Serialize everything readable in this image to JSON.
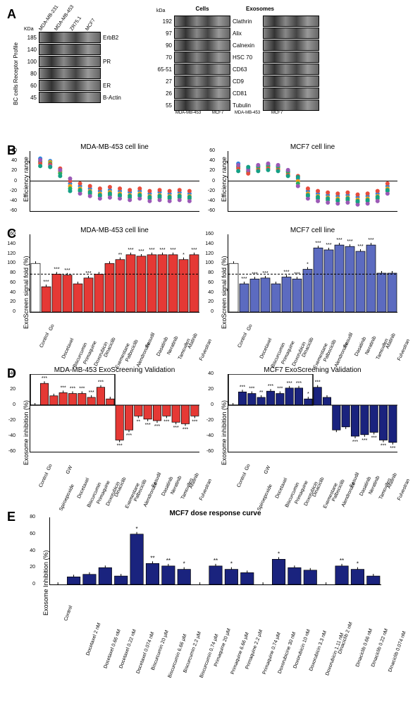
{
  "panelA": {
    "left": {
      "header": "BC cells Receptor Profile",
      "lanes": [
        "MDA-MB-231",
        "MDA-MB-453",
        "ZR75.1",
        "MCF7"
      ],
      "kda_label": "KDa",
      "bands": [
        {
          "kda": "185",
          "label": "ErbB2"
        },
        {
          "kda": "140",
          "label": ""
        },
        {
          "kda": "100",
          "label": "PR"
        },
        {
          "kda": "80",
          "label": ""
        },
        {
          "kda": "60",
          "label": "ER"
        },
        {
          "kda": "45",
          "label": "B-Actin"
        }
      ]
    },
    "right": {
      "kda_label": "kDa",
      "groups": [
        "Cells",
        "Exosomes"
      ],
      "lanes": [
        "MDA-MB-453",
        "MCF7",
        "MDA-MB-453",
        "MCF7"
      ],
      "bands": [
        {
          "kda": "192",
          "label": "Clathrin"
        },
        {
          "kda": "97",
          "label": "Alix"
        },
        {
          "kda": "90",
          "label": "Calnexin"
        },
        {
          "kda": "70",
          "label": "HSC 70"
        },
        {
          "kda": "65-51",
          "label": "CD63"
        },
        {
          "kda": "27",
          "label": "CD9"
        },
        {
          "kda": "26",
          "label": "CD81"
        },
        {
          "kda": "55",
          "label": "Tubulin"
        }
      ]
    }
  },
  "panelB": {
    "ylabel": "Efficiency range",
    "yticks": [
      -60,
      -40,
      -20,
      0,
      20,
      40,
      60
    ],
    "colors": [
      "#2e86de",
      "#f39c12",
      "#27ae60",
      "#e74c3c",
      "#9b59b6",
      "#16a085"
    ],
    "charts": [
      {
        "title": "MDA-MB-453 cell line",
        "points": [
          [
            1,
            45
          ],
          [
            1,
            40
          ],
          [
            1,
            38
          ],
          [
            1,
            35
          ],
          [
            1,
            42
          ],
          [
            1,
            30
          ],
          [
            2,
            40
          ],
          [
            2,
            38
          ],
          [
            2,
            35
          ],
          [
            2,
            33
          ],
          [
            2,
            30
          ],
          [
            2,
            28
          ],
          [
            3,
            20
          ],
          [
            3,
            18
          ],
          [
            3,
            15
          ],
          [
            3,
            25
          ],
          [
            3,
            22
          ],
          [
            3,
            10
          ],
          [
            4,
            -5
          ],
          [
            4,
            -10
          ],
          [
            4,
            -15
          ],
          [
            4,
            0
          ],
          [
            4,
            5
          ],
          [
            4,
            -20
          ],
          [
            5,
            -10
          ],
          [
            5,
            -15
          ],
          [
            5,
            -20
          ],
          [
            5,
            -5
          ],
          [
            5,
            -25
          ],
          [
            5,
            -18
          ],
          [
            6,
            -15
          ],
          [
            6,
            -20
          ],
          [
            6,
            -25
          ],
          [
            6,
            -10
          ],
          [
            6,
            -30
          ],
          [
            6,
            -22
          ],
          [
            7,
            -20
          ],
          [
            7,
            -25
          ],
          [
            7,
            -30
          ],
          [
            7,
            -15
          ],
          [
            7,
            -35
          ],
          [
            7,
            -28
          ],
          [
            8,
            -18
          ],
          [
            8,
            -22
          ],
          [
            8,
            -28
          ],
          [
            8,
            -12
          ],
          [
            8,
            -33
          ],
          [
            8,
            -25
          ],
          [
            9,
            -20
          ],
          [
            9,
            -25
          ],
          [
            9,
            -30
          ],
          [
            9,
            -15
          ],
          [
            9,
            -35
          ],
          [
            9,
            -28
          ],
          [
            10,
            -22
          ],
          [
            10,
            -28
          ],
          [
            10,
            -33
          ],
          [
            10,
            -18
          ],
          [
            10,
            -38
          ],
          [
            10,
            -30
          ],
          [
            11,
            -20
          ],
          [
            11,
            -25
          ],
          [
            11,
            -30
          ],
          [
            11,
            -15
          ],
          [
            11,
            -35
          ],
          [
            11,
            -28
          ],
          [
            12,
            -25
          ],
          [
            12,
            -30
          ],
          [
            12,
            -35
          ],
          [
            12,
            -20
          ],
          [
            12,
            -40
          ],
          [
            12,
            -32
          ],
          [
            13,
            -22
          ],
          [
            13,
            -28
          ],
          [
            13,
            -33
          ],
          [
            13,
            -18
          ],
          [
            13,
            -38
          ],
          [
            13,
            -30
          ],
          [
            14,
            -25
          ],
          [
            14,
            -30
          ],
          [
            14,
            -35
          ],
          [
            14,
            -20
          ],
          [
            14,
            -40
          ],
          [
            14,
            -32
          ],
          [
            15,
            -23
          ],
          [
            15,
            -28
          ],
          [
            15,
            -33
          ],
          [
            15,
            -18
          ],
          [
            15,
            -38
          ],
          [
            15,
            -30
          ],
          [
            16,
            -25
          ],
          [
            16,
            -30
          ],
          [
            16,
            -35
          ],
          [
            16,
            -20
          ],
          [
            16,
            -40
          ],
          [
            16,
            -32
          ]
        ]
      },
      {
        "title": "MCF7 cell line",
        "points": [
          [
            1,
            35
          ],
          [
            1,
            30
          ],
          [
            1,
            28
          ],
          [
            1,
            25
          ],
          [
            1,
            32
          ],
          [
            1,
            20
          ],
          [
            2,
            25
          ],
          [
            2,
            20
          ],
          [
            2,
            18
          ],
          [
            2,
            15
          ],
          [
            2,
            22
          ],
          [
            2,
            28
          ],
          [
            3,
            30
          ],
          [
            3,
            25
          ],
          [
            3,
            28
          ],
          [
            3,
            22
          ],
          [
            3,
            32
          ],
          [
            3,
            20
          ],
          [
            4,
            32
          ],
          [
            4,
            28
          ],
          [
            4,
            30
          ],
          [
            4,
            25
          ],
          [
            4,
            35
          ],
          [
            4,
            22
          ],
          [
            5,
            30
          ],
          [
            5,
            25
          ],
          [
            5,
            28
          ],
          [
            5,
            22
          ],
          [
            5,
            32
          ],
          [
            5,
            20
          ],
          [
            6,
            20
          ],
          [
            6,
            15
          ],
          [
            6,
            18
          ],
          [
            6,
            12
          ],
          [
            6,
            22
          ],
          [
            6,
            10
          ],
          [
            7,
            5
          ],
          [
            7,
            0
          ],
          [
            7,
            -5
          ],
          [
            7,
            10
          ],
          [
            7,
            -10
          ],
          [
            7,
            8
          ],
          [
            8,
            -20
          ],
          [
            8,
            -25
          ],
          [
            8,
            -30
          ],
          [
            8,
            -15
          ],
          [
            8,
            -35
          ],
          [
            8,
            -28
          ],
          [
            9,
            -25
          ],
          [
            9,
            -30
          ],
          [
            9,
            -35
          ],
          [
            9,
            -20
          ],
          [
            9,
            -40
          ],
          [
            9,
            -32
          ],
          [
            10,
            -28
          ],
          [
            10,
            -33
          ],
          [
            10,
            -38
          ],
          [
            10,
            -23
          ],
          [
            10,
            -43
          ],
          [
            10,
            -35
          ],
          [
            11,
            -30
          ],
          [
            11,
            -35
          ],
          [
            11,
            -40
          ],
          [
            11,
            -25
          ],
          [
            11,
            -45
          ],
          [
            11,
            -38
          ],
          [
            12,
            -28
          ],
          [
            12,
            -33
          ],
          [
            12,
            -38
          ],
          [
            12,
            -23
          ],
          [
            12,
            -43
          ],
          [
            12,
            -35
          ],
          [
            13,
            -32
          ],
          [
            13,
            -37
          ],
          [
            13,
            -42
          ],
          [
            13,
            -27
          ],
          [
            13,
            -47
          ],
          [
            13,
            -40
          ],
          [
            14,
            -30
          ],
          [
            14,
            -35
          ],
          [
            14,
            -40
          ],
          [
            14,
            -25
          ],
          [
            14,
            -45
          ],
          [
            14,
            -38
          ],
          [
            15,
            -25
          ],
          [
            15,
            -30
          ],
          [
            15,
            -35
          ],
          [
            15,
            -20
          ],
          [
            15,
            -40
          ],
          [
            15,
            -32
          ],
          [
            16,
            -10
          ],
          [
            16,
            -15
          ],
          [
            16,
            -20
          ],
          [
            16,
            -5
          ],
          [
            16,
            -25
          ],
          [
            16,
            -18
          ]
        ]
      }
    ]
  },
  "panelC": {
    "ylabel": "ExoScreen signal fold (%)",
    "yticks": [
      0,
      20,
      40,
      60,
      80,
      100,
      120,
      140,
      160
    ],
    "ref_line": 78,
    "labels": [
      "Control",
      "Go",
      "Docetaxel",
      "Biscurcumin",
      "Primaquine",
      "Doxorubicin",
      "Dinaciclib",
      "Exemestane",
      "Palbociclib",
      "Alendronate",
      "Fasudil",
      "Dasatinib",
      "Neratinib",
      "Tamoxifen",
      "Afatinib",
      "Fulvestran"
    ],
    "charts": [
      {
        "title": "MDA-MB-453 cell line",
        "color": "#e53935",
        "values": [
          100,
          52,
          78,
          76,
          58,
          70,
          78,
          100,
          108,
          118,
          115,
          118,
          118,
          118,
          108,
          118
        ],
        "sig": [
          "",
          "***",
          "***",
          "***",
          "",
          "***",
          "",
          "",
          "**",
          "***",
          "***",
          "***",
          "***",
          "***",
          "*",
          "***"
        ]
      },
      {
        "title": "MCF7 cell line",
        "color": "#5c6bc0",
        "values": [
          100,
          58,
          68,
          70,
          58,
          72,
          68,
          88,
          132,
          128,
          138,
          135,
          125,
          138,
          80,
          80
        ],
        "sig": [
          "",
          "***",
          "***",
          "***",
          "",
          "***",
          "***",
          "*",
          "***",
          "***",
          "***",
          "***",
          "***",
          "***",
          "",
          ""
        ]
      }
    ]
  },
  "panelD": {
    "ylabel": "Exosome inhibition (%)",
    "yticks": [
      -60,
      -40,
      -20,
      0,
      20,
      40
    ],
    "labels": [
      "Control",
      "Go",
      "Spiroepoxide",
      "GW",
      "Docetaxel",
      "Biscurcumin",
      "Primaquine",
      "Doxorubicin",
      "Dinaciclib",
      "Exemestane",
      "Palbociclib",
      "Alendronate",
      "Fasudil",
      "Dasatinib",
      "Neratinib",
      "Tamoxifen",
      "Afatinib",
      "Fulvestran"
    ],
    "box_end_index": 9,
    "charts": [
      {
        "title": "MDA-MB-453  ExoScreening Validation",
        "color": "#e53935",
        "values": [
          0,
          28,
          12,
          16,
          15,
          15,
          10,
          23,
          8,
          -45,
          -32,
          -14,
          -18,
          -20,
          -14,
          -22,
          -24,
          -14
        ],
        "sig": [
          "",
          "***",
          "",
          "***",
          "***",
          "***",
          "***",
          "***",
          "",
          "***",
          "***",
          "**",
          "***",
          "***",
          "***",
          "***",
          "***",
          "***"
        ]
      },
      {
        "title": "MCF7 ExoScreening Validation",
        "color": "#1a237e",
        "values": [
          0,
          17,
          15,
          10,
          18,
          15,
          22,
          22,
          8,
          23,
          10,
          -32,
          -28,
          -40,
          -38,
          -35,
          -45,
          -48
        ],
        "sig": [
          "",
          "***",
          "***",
          "**",
          "***",
          "***",
          "***",
          "***",
          "*",
          "***",
          "",
          "",
          "",
          "***",
          "***",
          "***",
          "***",
          "***"
        ]
      }
    ]
  },
  "panelE": {
    "title": "MCF7 dose response curve",
    "ylabel": "Exosome Inhibition (%)",
    "color": "#1a237e",
    "yticks": [
      0,
      20,
      40,
      60,
      80
    ],
    "labels": [
      "Control",
      "Docetaxel 2 nM",
      "Docetaxel 0.66 nM",
      "Docetaxel 0.22 nM",
      "Docetaxel 0.074 nM",
      "Biscurcumin 20 µM",
      "Biscurcumin 6.66 µM",
      "Biscurcumin 2.2 µM",
      "Biscurcumin 0.74 µM",
      "Primaquine 20 µM",
      "Primaquine 6.66 µM",
      "Primaquine 2.2 µM",
      "Primaquine 0.74 µM",
      "Doxorubicine 30 nM",
      "Doxorubicin 10 nM",
      "Doxorubicin 3.3 nM",
      "Doxorubicin 1.11 nM",
      "Dinaciclib 2 nM",
      "Dinaciclib 0.66 nM",
      "Dinaciclib 0.22 nM",
      "Dinaciclib 0.074 nM"
    ],
    "values": [
      0,
      9,
      12,
      20,
      10,
      60,
      25,
      22,
      18,
      0,
      22,
      18,
      14,
      0,
      30,
      20,
      17,
      0,
      22,
      18,
      10
    ],
    "sig": [
      "",
      "",
      "",
      "",
      "",
      "*",
      "**",
      "**",
      "*",
      "",
      "**",
      "*",
      "",
      "",
      "*",
      "",
      "",
      "",
      "**",
      "*",
      ""
    ]
  }
}
